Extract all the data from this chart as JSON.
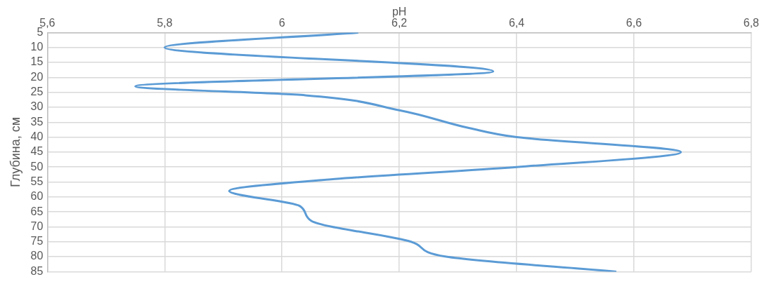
{
  "chart_data": {
    "type": "line",
    "xlabel": "pH",
    "ylabel": "Глубина, см",
    "xlim": [
      5.6,
      6.8
    ],
    "xticks": [
      {
        "value": 5.6,
        "label": "5,6"
      },
      {
        "value": 5.8,
        "label": "5,8"
      },
      {
        "value": 6,
        "label": "6"
      },
      {
        "value": 6.2,
        "label": "6,2"
      },
      {
        "value": 6.4,
        "label": "6,4"
      },
      {
        "value": 6.6,
        "label": "6,6"
      },
      {
        "value": 6.8,
        "label": "6,8"
      }
    ],
    "ylim": [
      85,
      5
    ],
    "yticks": [
      5,
      10,
      15,
      20,
      25,
      30,
      35,
      40,
      45,
      50,
      55,
      60,
      65,
      70,
      75,
      80,
      85
    ],
    "grid": true,
    "legend": false,
    "marker": "none",
    "line_style": "solid",
    "series": [
      {
        "color": "#5b9bd5",
        "x": [
          6.13,
          5.8,
          6.36,
          5.75,
          6.04,
          6.2,
          6.32,
          6.4,
          6.68,
          6.4,
          6.09,
          5.91,
          6.03,
          6.05,
          6.22,
          6.28,
          6.57
        ],
        "values": [
          5,
          10,
          18,
          23,
          26,
          31,
          37,
          40,
          45,
          50,
          54,
          58,
          63,
          68,
          75,
          80,
          85
        ]
      }
    ]
  }
}
